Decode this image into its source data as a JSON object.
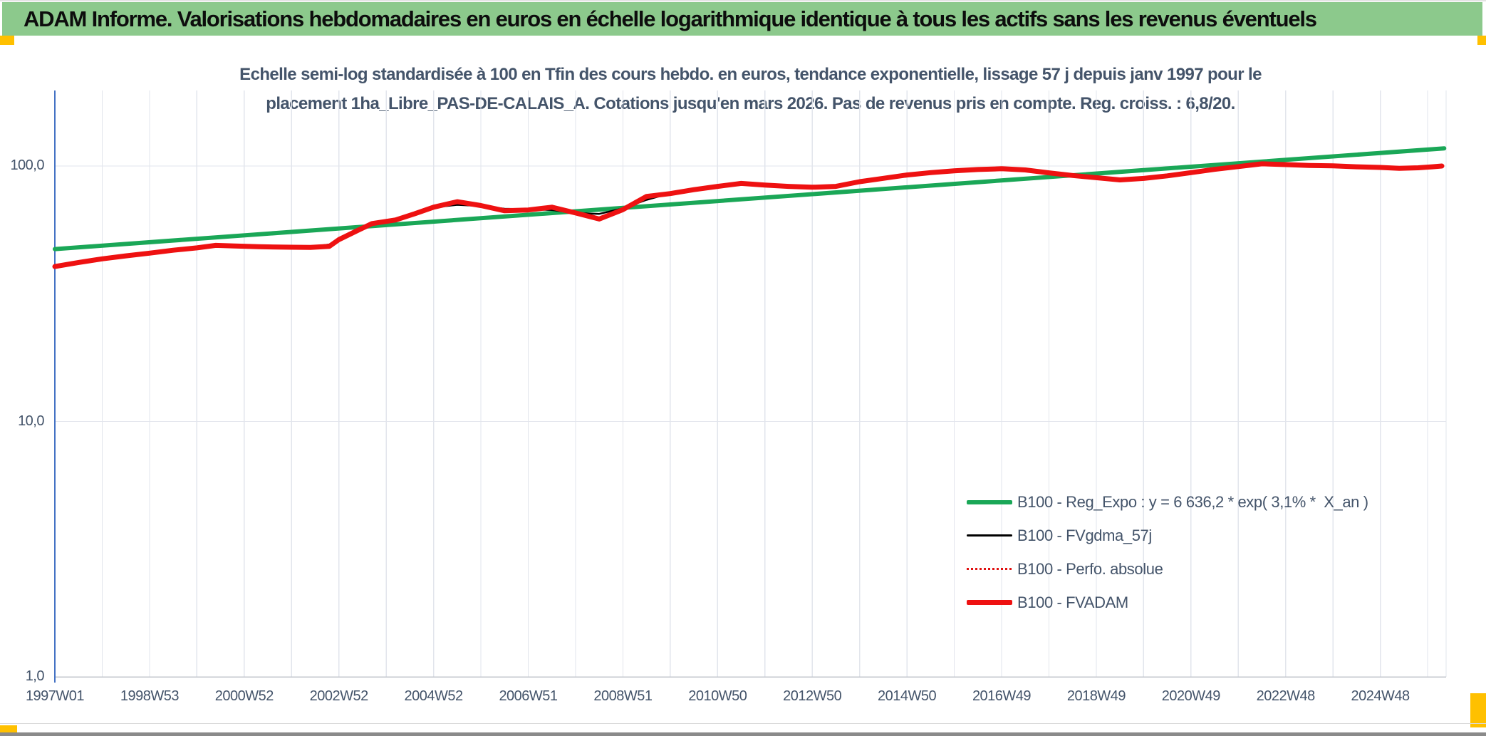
{
  "header": {
    "title": "ADAM Informe. Valorisations hebdomadaires en euros en échelle logarithmique identique à tous les actifs sans les revenus éventuels"
  },
  "palette": {
    "header_bg": "#8CC98C",
    "accent_yellow": "#FFC000",
    "text_color": "#44546A",
    "reg_expo_green": "#1AA757",
    "fvadam_red": "#EE1111",
    "fvgdma_black": "#000000",
    "y_axis_blue": "#4472C4"
  },
  "chart_data": {
    "type": "line",
    "title_line1": "Echelle semi-log standardisée à 100 en Tfin des cours hebdo. en euros, tendance exponentielle, lissage 57 j depuis janv 1997 pour le",
    "title_line2": "placement 1ha_Libre_PAS-DE-CALAIS_A. Cotations jusqu'en mars 2026. Pas de revenus pris en compte. Reg. croiss. : 6,8/20.",
    "x_axis": {
      "scale": "time-weekly",
      "range_years": [
        1997.0,
        2026.4
      ],
      "gridline_every_years": 1,
      "ticks": [
        {
          "label": "1997W01",
          "year": 1997
        },
        {
          "label": "1998W53",
          "year": 1999
        },
        {
          "label": "2000W52",
          "year": 2001
        },
        {
          "label": "2002W52",
          "year": 2003
        },
        {
          "label": "2004W52",
          "year": 2005
        },
        {
          "label": "2006W51",
          "year": 2007
        },
        {
          "label": "2008W51",
          "year": 2009
        },
        {
          "label": "2010W50",
          "year": 2011
        },
        {
          "label": "2012W50",
          "year": 2013
        },
        {
          "label": "2014W50",
          "year": 2015
        },
        {
          "label": "2016W49",
          "year": 2017
        },
        {
          "label": "2018W49",
          "year": 2019
        },
        {
          "label": "2020W49",
          "year": 2021
        },
        {
          "label": "2022W48",
          "year": 2023
        },
        {
          "label": "2024W48",
          "year": 2025
        }
      ]
    },
    "y_axis": {
      "scale": "log10",
      "min": 1,
      "max": 198,
      "ticks": [
        {
          "label": "100,0",
          "value": 100
        },
        {
          "label": "10,0",
          "value": 10
        },
        {
          "label": "1,0",
          "value": 1
        }
      ]
    },
    "legend_position": "inside-right-bottom",
    "grid": true,
    "series": [
      {
        "label": "B100 - Reg_Expo : y = 6 636,2 * exp( 3,1% *  X_an )",
        "color": "#1AA757",
        "style": "solid",
        "width": 6,
        "points": [
          [
            1997.0,
            47.3
          ],
          [
            2026.35,
            117.3
          ]
        ]
      },
      {
        "label": "B100 - FVgdma_57j",
        "color": "#000000",
        "style": "solid",
        "width": 2.5,
        "same_as": "B100 - FVADAM",
        "note": "57-day moving average, almost entirely hidden behind FVADAM"
      },
      {
        "label": "B100 - Perfo. absolue",
        "color": "#E01010",
        "style": "dotted",
        "width": 2,
        "same_as": "B100 - FVADAM",
        "note": "coincides with FVADAM (no revenues taken into account)"
      },
      {
        "label": "B100 - FVADAM",
        "color": "#EE1111",
        "style": "solid",
        "width": 7,
        "points": [
          [
            1997.0,
            40.4
          ],
          [
            1997.5,
            41.9
          ],
          [
            1998.0,
            43.3
          ],
          [
            1998.5,
            44.5
          ],
          [
            1999.0,
            45.6
          ],
          [
            1999.5,
            46.8
          ],
          [
            2000.0,
            47.8
          ],
          [
            2000.4,
            48.9
          ],
          [
            2000.8,
            48.6
          ],
          [
            2001.3,
            48.3
          ],
          [
            2002.0,
            48.1
          ],
          [
            2002.4,
            48.0
          ],
          [
            2002.8,
            48.5
          ],
          [
            2003.0,
            51.5
          ],
          [
            2003.4,
            56.0
          ],
          [
            2003.7,
            59.5
          ],
          [
            2004.2,
            61.5
          ],
          [
            2004.6,
            65.0
          ],
          [
            2005.0,
            69.0
          ],
          [
            2005.5,
            72.5
          ],
          [
            2006.0,
            70.0
          ],
          [
            2006.5,
            66.8
          ],
          [
            2007.0,
            67.3
          ],
          [
            2007.5,
            69.0
          ],
          [
            2008.0,
            65.5
          ],
          [
            2008.5,
            62.0
          ],
          [
            2009.0,
            67.5
          ],
          [
            2009.5,
            76.0
          ],
          [
            2010.0,
            78.0
          ],
          [
            2010.5,
            80.8
          ],
          [
            2011.0,
            83.2
          ],
          [
            2011.5,
            85.5
          ],
          [
            2012.0,
            84.2
          ],
          [
            2012.5,
            83.2
          ],
          [
            2013.0,
            82.6
          ],
          [
            2013.5,
            83.2
          ],
          [
            2014.0,
            86.8
          ],
          [
            2014.5,
            89.5
          ],
          [
            2015.0,
            92.2
          ],
          [
            2015.5,
            94.2
          ],
          [
            2016.0,
            95.8
          ],
          [
            2016.5,
            96.9
          ],
          [
            2017.0,
            97.6
          ],
          [
            2017.5,
            96.5
          ],
          [
            2018.0,
            94.0
          ],
          [
            2018.5,
            91.8
          ],
          [
            2019.0,
            90.0
          ],
          [
            2019.5,
            88.2
          ],
          [
            2020.0,
            89.4
          ],
          [
            2020.5,
            91.5
          ],
          [
            2021.0,
            94.2
          ],
          [
            2021.5,
            97.0
          ],
          [
            2022.0,
            99.5
          ],
          [
            2022.5,
            102.0
          ],
          [
            2023.0,
            101.3
          ],
          [
            2023.5,
            100.5
          ],
          [
            2024.0,
            100.1
          ],
          [
            2024.5,
            99.3
          ],
          [
            2025.0,
            98.7
          ],
          [
            2025.4,
            97.9
          ],
          [
            2025.8,
            98.4
          ],
          [
            2026.1,
            99.3
          ],
          [
            2026.3,
            100.0
          ]
        ]
      }
    ]
  }
}
